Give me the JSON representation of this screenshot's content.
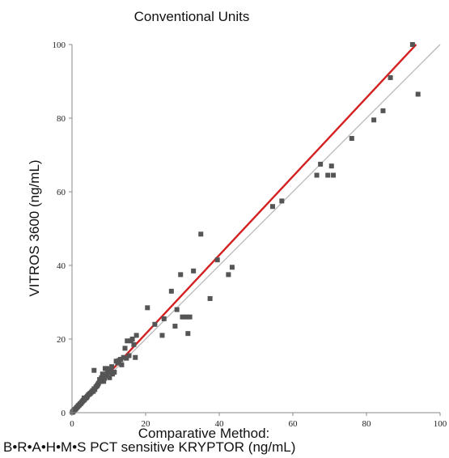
{
  "chart_data": {
    "type": "scatter",
    "title": "Conventional Units",
    "xlabel_line1": "Comparative Method:",
    "xlabel_line2": "B•R•A•H•M•S PCT sensitive KRYPTOR (ng/mL)",
    "ylabel": "VITROS 3600 (ng/mL)",
    "xlim": [
      0,
      100
    ],
    "ylim": [
      0,
      100
    ],
    "xticks": [
      "0",
      "20",
      "40",
      "60",
      "80",
      "100"
    ],
    "yticks": [
      "0",
      "20",
      "40",
      "60",
      "80",
      "100"
    ],
    "grid": false,
    "legend": "none",
    "colors": {
      "points": "#555555",
      "regression": "#d42020",
      "identity": "#b8b8b8",
      "axis": "#888888"
    },
    "regression_line": {
      "x": [
        0,
        93.5
      ],
      "y": [
        0,
        100
      ]
    },
    "identity_line": {
      "x": [
        0,
        100
      ],
      "y": [
        0,
        100
      ]
    },
    "points": {
      "x": [
        0.1,
        0.2,
        0.3,
        0.4,
        0.5,
        0.6,
        0.8,
        1.0,
        1.2,
        1.4,
        1.6,
        1.8,
        2.0,
        2.2,
        2.4,
        2.6,
        2.8,
        3.0,
        3.2,
        3.4,
        3.6,
        3.8,
        4.0,
        4.2,
        4.5,
        4.8,
        5.0,
        5.3,
        5.6,
        5.8,
        6.0,
        6.2,
        6.5,
        6.8,
        7.0,
        7.2,
        7.5,
        7.8,
        8.0,
        8.3,
        8.6,
        8.8,
        9.0,
        9.3,
        9.6,
        10.0,
        10.2,
        10.5,
        10.8,
        11.0,
        11.5,
        12.0,
        12.4,
        12.8,
        13.2,
        13.5,
        14.0,
        14.4,
        14.8,
        15.0,
        15.5,
        16.0,
        16.4,
        16.8,
        17.2,
        17.5,
        20.5,
        22.5,
        24.5,
        25.0,
        27.0,
        28.0,
        28.5,
        29.5,
        30.0,
        31.0,
        31.5,
        32.0,
        33.0,
        35.0,
        37.5,
        39.5,
        42.5,
        43.5,
        54.5,
        57.0,
        66.5,
        67.5,
        69.5,
        70.5,
        71.0,
        76.0,
        82.0,
        84.5,
        86.5,
        92.5,
        94.0,
        6.0,
        9.5,
        3.3
      ],
      "y": [
        0.1,
        0.2,
        0.3,
        0.5,
        0.6,
        0.7,
        0.9,
        1.0,
        1.3,
        1.5,
        1.7,
        2.0,
        2.1,
        2.4,
        2.5,
        2.8,
        3.0,
        3.3,
        3.4,
        3.6,
        3.9,
        4.0,
        4.2,
        4.5,
        4.9,
        5.1,
        5.3,
        5.6,
        6.0,
        5.8,
        6.5,
        6.3,
        7.0,
        7.3,
        7.6,
        8.0,
        9.0,
        8.5,
        9.5,
        10.5,
        8.5,
        9.3,
        12.0,
        10.0,
        10.8,
        11.0,
        9.5,
        11.5,
        12.5,
        10.5,
        11.0,
        14.0,
        13.5,
        14.2,
        14.5,
        13.0,
        15.0,
        17.5,
        14.8,
        19.5,
        15.5,
        19.5,
        20.0,
        18.5,
        15.0,
        21.0,
        28.5,
        24.0,
        21.0,
        25.5,
        33.0,
        23.5,
        28.0,
        37.5,
        26.0,
        26.0,
        21.5,
        26.0,
        38.5,
        48.5,
        31.0,
        41.5,
        37.5,
        39.5,
        56.0,
        57.5,
        64.5,
        67.5,
        64.5,
        67.0,
        64.5,
        74.5,
        79.5,
        82.0,
        91.0,
        100.0,
        86.5,
        11.5,
        12.0,
        4.0
      ]
    }
  }
}
